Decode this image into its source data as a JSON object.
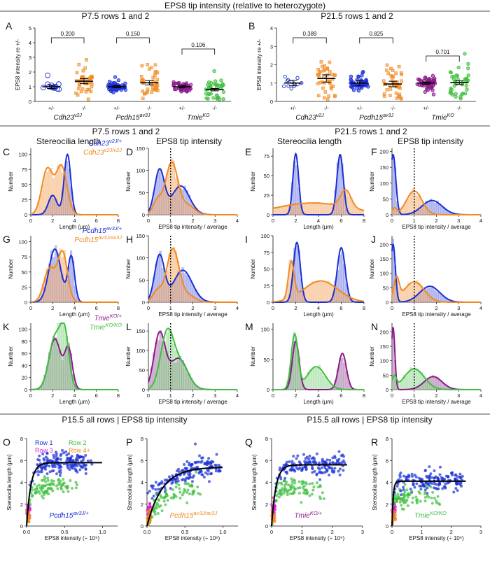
{
  "header": {
    "title": "EPS8 tip intensity (relative to heterozygote)",
    "sec_a": "P7.5 rows 1 and 2",
    "sec_b": "P21.5 rows 1 and 2",
    "sec_p7": "P7.5 rows 1 and 2",
    "sec_p21": "P21.5 rows 1 and 2",
    "sub_len_a": "Stereocilia length",
    "sub_eps_a": "EPS8 tip intensity",
    "sub_len_b": "Stereocilia length",
    "sub_eps_b": "EPS8 tip intensity",
    "sec_p15a": "P15.5 all rows | EPS8 tip intensity",
    "sec_p15b": "P15.5 all rows | EPS8 tip intensity"
  },
  "colors": {
    "het_blue": "#1a2fd6",
    "cdh_orange": "#f08a22",
    "tmie_purple": "#8b1a8b",
    "tmie_green": "#3fbf3f",
    "row3_magenta": "#e020d0",
    "bar_blue": "#8a94e8",
    "bar_orange": "#f5b57a",
    "bar_purple": "#a980a9",
    "bar_green": "#9fdc9f",
    "fit_black": "#000000"
  },
  "chart_data": [
    {
      "id": "A",
      "panel": "A",
      "type": "scatter",
      "title": "P7.5 rows 1 and 2",
      "ylabel": "EPS8 intensity re +/-",
      "ylim": [
        0,
        5
      ],
      "yticks": [
        "0",
        "1",
        "2",
        "3",
        "4",
        "5"
      ],
      "groups": [
        {
          "x": "+/-",
          "gene": "Cdh23",
          "sup": "v2J",
          "mean": 1.0,
          "sem": 0.12,
          "color": "het_blue"
        },
        {
          "x": "-/-",
          "gene": "Cdh23",
          "sup": "v2J",
          "mean": 1.38,
          "sem": 0.17,
          "color": "cdh_orange"
        },
        {
          "x": "+/-",
          "gene": "Pcdh15",
          "sup": "av3J",
          "mean": 1.0,
          "sem": 0.07,
          "color": "het_blue"
        },
        {
          "x": "-/-",
          "gene": "Pcdh15",
          "sup": "av3J",
          "mean": 1.27,
          "sem": 0.15,
          "color": "cdh_orange"
        },
        {
          "x": "+/-",
          "gene": "Tmie",
          "sup": "KO",
          "mean": 1.0,
          "sem": 0.08,
          "color": "tmie_purple"
        },
        {
          "x": "-/-",
          "gene": "Tmie",
          "sup": "KO",
          "mean": 0.8,
          "sem": 0.08,
          "color": "tmie_green"
        }
      ],
      "pvalues": [
        "0.200",
        "0.150",
        "0.106"
      ]
    },
    {
      "id": "B",
      "panel": "B",
      "type": "scatter",
      "title": "P21.5 rows 1 and 2",
      "ylabel": "EPS8 intensity re +/-",
      "ylim": [
        0,
        4
      ],
      "yticks": [
        "0",
        "1",
        "2",
        "3",
        "4"
      ],
      "groups": [
        {
          "x": "+/-",
          "gene": "Cdh23",
          "sup": "v2J",
          "mean": 1.0,
          "sem": 0.15,
          "color": "het_blue"
        },
        {
          "x": "-/-",
          "gene": "Cdh23",
          "sup": "v2J",
          "mean": 1.25,
          "sem": 0.2,
          "color": "cdh_orange"
        },
        {
          "x": "+/-",
          "gene": "Pcdh15",
          "sup": "av3J",
          "mean": 1.0,
          "sem": 0.15,
          "color": "het_blue"
        },
        {
          "x": "-/-",
          "gene": "Pcdh15",
          "sup": "av3J",
          "mean": 0.95,
          "sem": 0.15,
          "color": "cdh_orange"
        },
        {
          "x": "+/-",
          "gene": "Tmie",
          "sup": "KO",
          "mean": 1.0,
          "sem": 0.06,
          "color": "tmie_purple"
        },
        {
          "x": "-/-",
          "gene": "Tmie",
          "sup": "KO",
          "mean": 1.02,
          "sem": 0.1,
          "color": "tmie_green"
        }
      ],
      "pvalues": [
        "0.389",
        "0.825",
        "0.701"
      ]
    },
    {
      "id": "C",
      "panel": "C",
      "type": "bar",
      "xlabel": "Length (μm)",
      "ylabel": "Number",
      "xlim": [
        0,
        8
      ],
      "ylim": [
        0,
        110
      ],
      "xticks": [
        "0",
        "2",
        "4",
        "6",
        "8"
      ],
      "yticks": [
        "0",
        "25",
        "50",
        "75",
        "100"
      ],
      "legend": [
        {
          "gene": "Cdh23",
          "sup": "v2J/+",
          "color": "het_blue"
        },
        {
          "gene": "Cdh23",
          "sup": "v2J/v2J",
          "color": "cdh_orange"
        }
      ],
      "series": [
        {
          "color": "het_blue",
          "bar": "bar_blue",
          "g": [
            [
              32,
              2.0,
              0.4
            ],
            [
              100,
              3.35,
              0.3
            ]
          ]
        },
        {
          "color": "cdh_orange",
          "bar": "bar_orange",
          "g": [
            [
              75,
              1.5,
              0.5
            ],
            [
              80,
              2.8,
              0.5
            ]
          ]
        }
      ]
    },
    {
      "id": "D",
      "panel": "D",
      "type": "bar",
      "xlabel": "EPS8 tip intensity / average",
      "ylabel": "Number",
      "xlim": [
        0,
        4
      ],
      "ylim": [
        0,
        150
      ],
      "xticks": [
        "0",
        "1",
        "2",
        "3",
        "4"
      ],
      "yticks": [
        "0",
        "50",
        "100",
        "150"
      ],
      "vline": 1,
      "series": [
        {
          "color": "het_blue",
          "bar": "bar_blue",
          "g": [
            [
              100,
              0.5,
              0.22
            ],
            [
              65,
              1.45,
              0.4
            ]
          ]
        },
        {
          "color": "cdh_orange",
          "bar": "bar_orange",
          "g": [
            [
              30,
              0.4,
              0.2
            ],
            [
              118,
              1.05,
              0.28
            ],
            [
              20,
              1.8,
              0.3
            ]
          ]
        }
      ]
    },
    {
      "id": "E",
      "panel": "E",
      "type": "bar",
      "xlabel": "Length (μm)",
      "ylabel": "Number",
      "xlim": [
        0,
        8
      ],
      "ylim": [
        0,
        85
      ],
      "xticks": [
        "0",
        "2",
        "4",
        "6",
        "8"
      ],
      "yticks": [
        "0",
        "25",
        "50",
        "75"
      ],
      "series": [
        {
          "color": "het_blue",
          "bar": "bar_blue",
          "g": [
            [
              78,
              2.0,
              0.25
            ],
            [
              77,
              5.9,
              0.28
            ]
          ]
        },
        {
          "color": "cdh_orange",
          "bar": "bar_orange",
          "g": [
            [
              15,
              3.5,
              3.2
            ],
            [
              22,
              6.4,
              0.45
            ]
          ]
        }
      ]
    },
    {
      "id": "F",
      "panel": "F",
      "type": "bar",
      "xlabel": "EPS8 tip intensity / average",
      "ylabel": "Number",
      "xlim": [
        0,
        4
      ],
      "ylim": [
        0,
        210
      ],
      "xticks": [
        "0",
        "1",
        "2",
        "3",
        "4"
      ],
      "yticks": [
        "0",
        "50",
        "100",
        "150",
        "200"
      ],
      "vline": 1,
      "series": [
        {
          "color": "het_blue",
          "bar": "bar_blue",
          "g": [
            [
              190,
              0.05,
              0.12
            ],
            [
              45,
              1.8,
              0.45
            ]
          ]
        },
        {
          "color": "cdh_orange",
          "bar": "bar_orange",
          "g": [
            [
              75,
              1.0,
              0.35
            ],
            [
              20,
              0.1,
              0.1
            ]
          ]
        }
      ]
    },
    {
      "id": "G",
      "panel": "G",
      "type": "bar",
      "xlabel": "Length (μm)",
      "ylabel": "Number",
      "xlim": [
        0,
        8
      ],
      "ylim": [
        0,
        110
      ],
      "xticks": [
        "0",
        "2",
        "4",
        "6",
        "8"
      ],
      "yticks": [
        "0",
        "25",
        "50",
        "75",
        "100"
      ],
      "legend": [
        {
          "gene": "Pcdh15",
          "sup": "av3J/+",
          "color": "het_blue"
        },
        {
          "gene": "Pcdh15",
          "sup": "av3J/av3J",
          "color": "cdh_orange"
        }
      ],
      "series": [
        {
          "color": "het_blue",
          "bar": "bar_blue",
          "g": [
            [
              88,
              2.2,
              0.55
            ],
            [
              75,
              3.7,
              0.3
            ]
          ]
        },
        {
          "color": "cdh_orange",
          "bar": "bar_orange",
          "g": [
            [
              55,
              1.7,
              0.5
            ],
            [
              82,
              2.9,
              0.45
            ]
          ]
        }
      ]
    },
    {
      "id": "H",
      "panel": "H",
      "type": "bar",
      "xlabel": "EPS8 tip intensity / average",
      "ylabel": "Number",
      "xlim": [
        0,
        4
      ],
      "ylim": [
        0,
        150
      ],
      "xticks": [
        "0",
        "1",
        "2",
        "3",
        "4"
      ],
      "yticks": [
        "0",
        "50",
        "100",
        "150"
      ],
      "vline": 1,
      "series": [
        {
          "color": "het_blue",
          "bar": "bar_blue",
          "g": [
            [
              105,
              0.5,
              0.22
            ],
            [
              72,
              1.55,
              0.42
            ]
          ]
        },
        {
          "color": "cdh_orange",
          "bar": "bar_orange",
          "g": [
            [
              25,
              0.4,
              0.2
            ],
            [
              120,
              1.1,
              0.28
            ],
            [
              15,
              1.8,
              0.3
            ]
          ]
        }
      ]
    },
    {
      "id": "I",
      "panel": "I",
      "type": "bar",
      "xlabel": "Length (μm)",
      "ylabel": "Number",
      "xlim": [
        0,
        8
      ],
      "ylim": [
        0,
        100
      ],
      "xticks": [
        "0",
        "2",
        "4",
        "6",
        "8"
      ],
      "yticks": [
        "0",
        "25",
        "50",
        "75",
        "100"
      ],
      "series": [
        {
          "color": "het_blue",
          "bar": "bar_blue",
          "g": [
            [
              90,
              2.1,
              0.3
            ],
            [
              82,
              6.0,
              0.35
            ]
          ]
        },
        {
          "color": "cdh_orange",
          "bar": "bar_orange",
          "g": [
            [
              55,
              1.6,
              0.25
            ],
            [
              32,
              4.2,
              1.5
            ]
          ]
        }
      ]
    },
    {
      "id": "J",
      "panel": "J",
      "type": "bar",
      "xlabel": "EPS8 tip intensity / average",
      "ylabel": "Number",
      "xlim": [
        0,
        4
      ],
      "ylim": [
        0,
        230
      ],
      "xticks": [
        "0",
        "1",
        "2",
        "3",
        "4"
      ],
      "yticks": [
        "0",
        "50",
        "100",
        "150",
        "200"
      ],
      "vline": 1,
      "series": [
        {
          "color": "het_blue",
          "bar": "bar_blue",
          "g": [
            [
              200,
              0.05,
              0.1
            ],
            [
              55,
              1.7,
              0.45
            ]
          ]
        },
        {
          "color": "cdh_orange",
          "bar": "bar_orange",
          "g": [
            [
              75,
              0.2,
              0.12
            ],
            [
              70,
              1.0,
              0.45
            ]
          ]
        }
      ]
    },
    {
      "id": "K",
      "panel": "K",
      "type": "bar",
      "xlabel": "Length (μm)",
      "ylabel": "Number",
      "xlim": [
        0,
        8
      ],
      "ylim": [
        0,
        110
      ],
      "xticks": [
        "0",
        "2",
        "4",
        "6",
        "8"
      ],
      "yticks": [
        "0",
        "20",
        "40",
        "60",
        "80",
        "100"
      ],
      "legend": [
        {
          "gene": "Tmie",
          "sup": "KO/+",
          "color": "tmie_purple"
        },
        {
          "gene": "Tmie",
          "sup": "KO/KO",
          "color": "tmie_green"
        }
      ],
      "series": [
        {
          "color": "tmie_purple",
          "bar": "bar_purple",
          "g": [
            [
              84,
              2.2,
              0.55
            ],
            [
              65,
              3.45,
              0.35
            ]
          ]
        },
        {
          "color": "tmie_green",
          "bar": "bar_green",
          "g": [
            [
              85,
              2.2,
              0.55
            ],
            [
              85,
              3.1,
              0.4
            ]
          ]
        }
      ]
    },
    {
      "id": "L",
      "panel": "L",
      "type": "bar",
      "xlabel": "EPS8 tip intensity / average",
      "ylabel": "Number",
      "xlim": [
        0,
        4
      ],
      "ylim": [
        0,
        170
      ],
      "xticks": [
        "0",
        "1",
        "2",
        "3",
        "4"
      ],
      "yticks": [
        "0",
        "50",
        "100",
        "150"
      ],
      "vline": 1,
      "series": [
        {
          "color": "tmie_purple",
          "bar": "bar_purple",
          "g": [
            [
              140,
              0.5,
              0.25
            ],
            [
              80,
              1.35,
              0.4
            ]
          ]
        },
        {
          "color": "tmie_green",
          "bar": "bar_green",
          "g": [
            [
              145,
              0.85,
              0.3
            ],
            [
              60,
              1.5,
              0.35
            ]
          ]
        }
      ]
    },
    {
      "id": "M",
      "panel": "M",
      "type": "bar",
      "xlabel": "Length (μm)",
      "ylabel": "Number",
      "xlim": [
        0,
        8
      ],
      "ylim": [
        0,
        110
      ],
      "xticks": [
        "0",
        "2",
        "4",
        "6",
        "8"
      ],
      "yticks": [
        "0",
        "50",
        "100"
      ],
      "series": [
        {
          "color": "tmie_purple",
          "bar": "bar_purple",
          "g": [
            [
              80,
              2.0,
              0.3
            ],
            [
              60,
              6.1,
              0.35
            ]
          ]
        },
        {
          "color": "tmie_green",
          "bar": "bar_green",
          "g": [
            [
              90,
              1.9,
              0.3
            ],
            [
              38,
              3.8,
              0.8
            ]
          ]
        }
      ]
    },
    {
      "id": "N",
      "panel": "N",
      "type": "bar",
      "xlabel": "EPS8 tip intensity / average",
      "ylabel": "Number",
      "xlim": [
        0,
        4
      ],
      "ylim": [
        0,
        230
      ],
      "xticks": [
        "0",
        "1",
        "2",
        "3",
        "4"
      ],
      "yticks": [
        "0",
        "50",
        "100",
        "150",
        "200"
      ],
      "vline": 1,
      "series": [
        {
          "color": "tmie_purple",
          "bar": "bar_purple",
          "g": [
            [
              215,
              0.05,
              0.08
            ],
            [
              45,
              1.85,
              0.4
            ]
          ]
        },
        {
          "color": "tmie_green",
          "bar": "bar_green",
          "g": [
            [
              72,
              1.0,
              0.45
            ],
            [
              40,
              0.1,
              0.1
            ]
          ]
        }
      ]
    },
    {
      "id": "O",
      "panel": "O",
      "type": "scatter",
      "xlabel": "EPS8 intensity (÷ 10⁶)",
      "ylabel": "Stereocilia length (μm)",
      "xlim": [
        0,
        1.2
      ],
      "ylim": [
        0,
        8
      ],
      "xticks": [
        "0.0",
        "0.5",
        "1.0"
      ],
      "xtickv": [
        0,
        0.5,
        1.0
      ],
      "yticks": [
        "0",
        "2",
        "4",
        "6",
        "8"
      ],
      "label": {
        "gene": "Pcdh15",
        "sup": "av3J/+",
        "color": "het_blue"
      },
      "fit": {
        "plateau": 5.8,
        "rate": 18
      },
      "spread": [
        0.2,
        0.9
      ],
      "legend": [
        {
          "text": "Row 1",
          "color": "het_blue"
        },
        {
          "text": "Row 2",
          "color": "tmie_green"
        },
        {
          "text": "Row 3",
          "color": "row3_magenta"
        },
        {
          "text": "Row 4+",
          "color": "cdh_orange"
        }
      ]
    },
    {
      "id": "P",
      "panel": "P",
      "type": "scatter",
      "xlabel": "EPS8 intensity (÷ 10⁶)",
      "ylabel": "Stereocilia length (μm)",
      "xlim": [
        0,
        1.2
      ],
      "ylim": [
        0,
        8
      ],
      "xticks": [
        "0.0",
        "0.5",
        "1.0"
      ],
      "xtickv": [
        0,
        0.5,
        1.0
      ],
      "yticks": [
        "0",
        "2",
        "4",
        "6",
        "8"
      ],
      "label": {
        "gene": "Pcdh15",
        "sup": "av3J/av3J",
        "color": "cdh_orange"
      },
      "fit": {
        "plateau": 5.4,
        "rate": 5
      },
      "spread": [
        0.05,
        1.0
      ]
    },
    {
      "id": "Q",
      "panel": "Q",
      "type": "scatter",
      "xlabel": "EPS8 intensity (÷ 10⁶)",
      "ylabel": "Stereocilia length (μm)",
      "xlim": [
        0,
        3
      ],
      "ylim": [
        0,
        8
      ],
      "xticks": [
        "0",
        "1",
        "2",
        "3"
      ],
      "xtickv": [
        0,
        1,
        2,
        3
      ],
      "yticks": [
        "0",
        "2",
        "4",
        "6",
        "8"
      ],
      "label": {
        "gene": "Tmie",
        "sup": "KO/+",
        "color": "tmie_purple"
      },
      "fit": {
        "plateau": 5.6,
        "rate": 7
      },
      "spread": [
        0.3,
        2.5
      ]
    },
    {
      "id": "R",
      "panel": "R",
      "type": "scatter",
      "xlabel": "EPS8 intensity (÷ 10⁶)",
      "ylabel": "Stereocilia length (μm)",
      "xlim": [
        0,
        3
      ],
      "ylim": [
        0,
        8
      ],
      "xticks": [
        "0",
        "1",
        "2",
        "3"
      ],
      "xtickv": [
        0,
        1,
        2,
        3
      ],
      "yticks": [
        "0",
        "2",
        "4",
        "6",
        "8"
      ],
      "label": {
        "gene": "Tmie",
        "sup": "KO/KO",
        "color": "tmie_green"
      },
      "fit": {
        "plateau": 4.1,
        "rate": 25
      },
      "spread": [
        0.05,
        2.4
      ]
    }
  ]
}
